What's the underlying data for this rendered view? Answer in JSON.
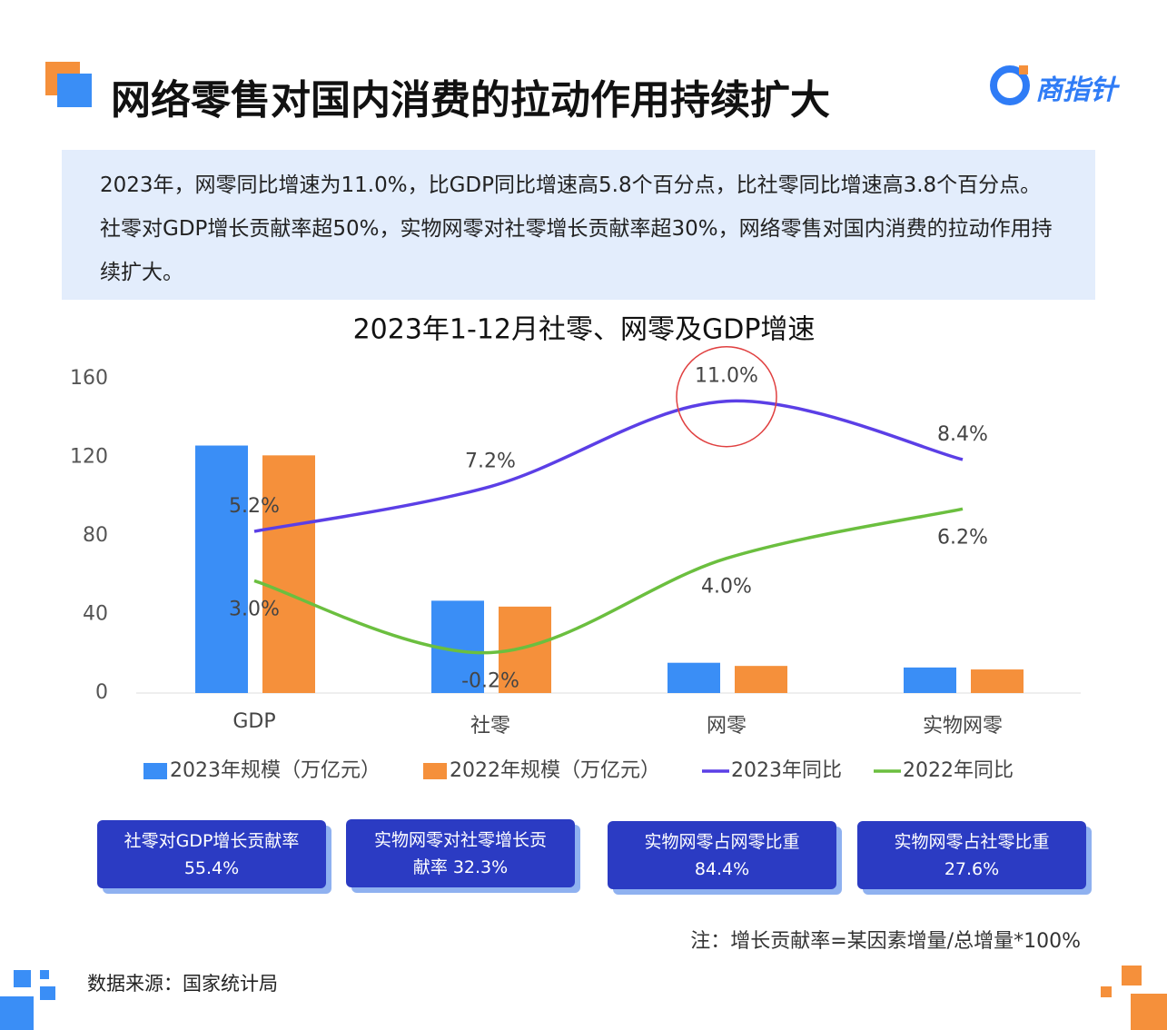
{
  "header": {
    "title": "网络零售对国内消费的拉动作用持续扩大",
    "logo": "商指针"
  },
  "summary": "2023年，网零同比增速为11.0%，比GDP同比增速高5.8个百分点，比社零同比增速高3.8个百分点。社零对GDP增长贡献率超50%，实物网零对社零增长贡献率超30%，网络零售对国内消费的拉动作用持续扩大。",
  "chart_data": {
    "type": "bar-line",
    "title": "2023年1-12月社零、网零及GDP增速",
    "categories": [
      "GDP",
      "社零",
      "网零",
      "实物网零"
    ],
    "series": [
      {
        "name": "2023年规模（万亿元）",
        "type": "bar",
        "color": "#3a8ef6",
        "values": [
          126,
          47,
          15.4,
          13
        ]
      },
      {
        "name": "2022年规模（万亿元）",
        "type": "bar",
        "color": "#f5903b",
        "values": [
          121,
          44,
          13.8,
          12
        ]
      },
      {
        "name": "2023年同比",
        "type": "line",
        "axis": "y2",
        "color": "#5b3fe6",
        "values": [
          5.2,
          7.2,
          11.0,
          8.4
        ],
        "value_labels": [
          "5.2%",
          "7.2%",
          "11.0%",
          "8.4%"
        ]
      },
      {
        "name": "2022年同比",
        "type": "line",
        "axis": "y2",
        "color": "#6bbf3f",
        "values": [
          3.0,
          -0.2,
          4.0,
          6.2
        ],
        "value_labels": [
          "3.0%",
          "-0.2%",
          "4.0%",
          "6.2%"
        ]
      }
    ],
    "ylim": [
      0,
      160
    ],
    "yticks": [
      0,
      40,
      80,
      120,
      160
    ],
    "y2lim": [
      -2,
      12
    ],
    "grid": false,
    "legend": "bottom"
  },
  "cards": [
    {
      "label": "社零对GDP增长贡献率",
      "value": "55.4%"
    },
    {
      "label": "实物网零对社零增长贡献率",
      "value": "32.3%"
    },
    {
      "label": "实物网零占网零比重",
      "value": "84.4%"
    },
    {
      "label": "实物网零占社零比重",
      "value": "27.6%"
    }
  ],
  "note": "注：增长贡献率=某因素增量/总增量*100%",
  "source": "数据来源：国家统计局"
}
